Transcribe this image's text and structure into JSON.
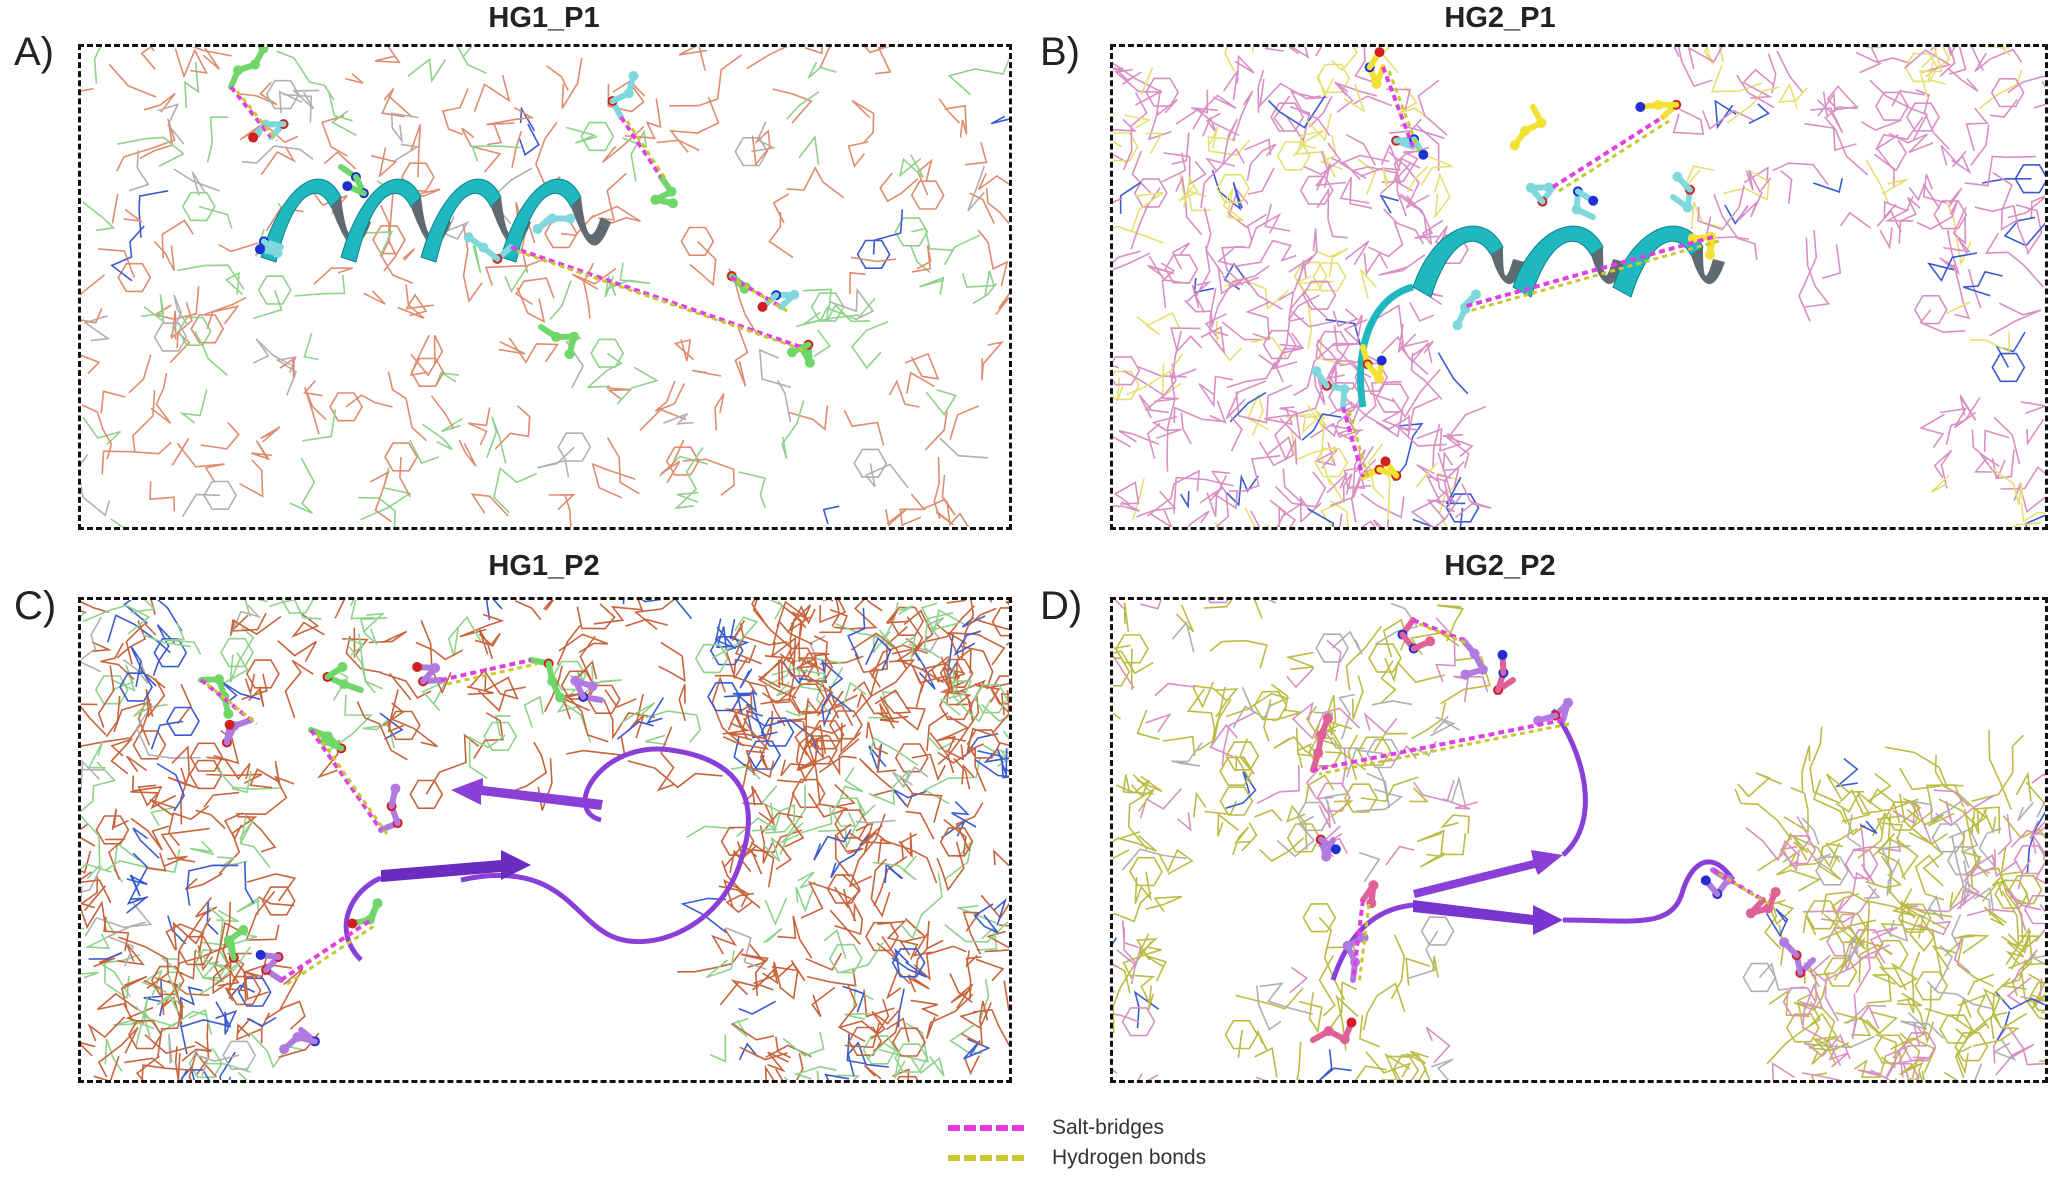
{
  "panels": [
    {
      "letter": "A)",
      "title": "HG1_P1",
      "wire_colors": [
        "#e08c6e",
        "#8fd28a",
        "#b0b0b0",
        "#3a5bd0"
      ],
      "ribbon_color": "#1fb8c0",
      "stick_colors": [
        "#6fd66a",
        "#7fd8dc"
      ]
    },
    {
      "letter": "B)",
      "title": "HG2_P1",
      "wire_colors": [
        "#d98fc4",
        "#e6e070",
        "#3a5bd0"
      ],
      "ribbon_color": "#1fb8c0",
      "stick_colors": [
        "#f2e233",
        "#7fd8dc"
      ]
    },
    {
      "letter": "C)",
      "title": "HG1_P2",
      "wire_colors": [
        "#c8643c",
        "#8fd28a",
        "#3a5bd0",
        "#b0b0b0"
      ],
      "ribbon_color": "#8a3fd8",
      "stick_colors": [
        "#6fd66a",
        "#b07ae0"
      ]
    },
    {
      "letter": "D)",
      "title": "HG2_P2",
      "wire_colors": [
        "#bcbc44",
        "#d98fc4",
        "#b0b0b0",
        "#3a5bd0"
      ],
      "ribbon_color": "#8a3fd8",
      "stick_colors": [
        "#e0609a",
        "#b07ae0"
      ]
    }
  ],
  "legend": [
    {
      "label": "Salt-bridges",
      "color": "#e040e0"
    },
    {
      "label": "Hydrogen bonds",
      "color": "#c8c830"
    }
  ]
}
